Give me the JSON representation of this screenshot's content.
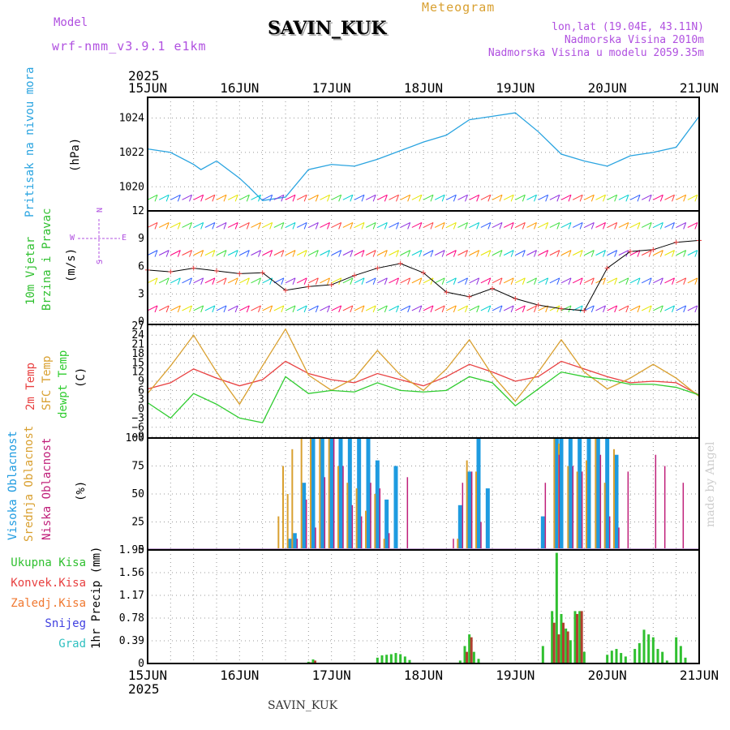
{
  "header": {
    "model_label": "Model",
    "model_name": "wrf-nmm_v3.9.1 e1km",
    "station": "SAVIN_KUK",
    "product": "Meteogram",
    "coords": "lon,lat (19.04E, 43.11N)",
    "elevation": "Nadmorska Visina 2010m",
    "model_elevation": "Nadmorska Visina u modelu 2059.35m",
    "year": "2025",
    "footer_station": "SAVIN_KUK",
    "credit": "made by Angel"
  },
  "colors": {
    "pressure": "#2aa4e0",
    "temp2m": "#e84040",
    "sfctemp": "#d9a030",
    "dewpt": "#30cc30",
    "wind_label": "#30c030",
    "high_cloud": "#1e9be0",
    "mid_cloud": "#d9a030",
    "low_cloud": "#c0207a",
    "precip": "#30c030",
    "convective": "#e84040",
    "freezing": "#f07830",
    "snow": "#4040e0",
    "graupel": "#30c0c0",
    "compass": "#b050e0"
  },
  "chart_data": [
    {
      "type": "line",
      "id": "pressure",
      "label": "Pritisak na nivou mora",
      "ylabel": "(hPa)",
      "x_ticks": [
        "15JUN",
        "16JUN",
        "17JUN",
        "18JUN",
        "19JUN",
        "20JUN",
        "21JUN"
      ],
      "x_range_days": [
        0,
        6
      ],
      "ylim": [
        1018.6,
        1025.2
      ],
      "y_ticks": [
        1020,
        1022,
        1024
      ],
      "series": [
        {
          "x": [
            0,
            0.25,
            0.5,
            0.58,
            0.75,
            1.0,
            1.1,
            1.25,
            1.5,
            1.75,
            2.0,
            2.25,
            2.5,
            2.75,
            3.0,
            3.25,
            3.5,
            3.75,
            4.0,
            4.25,
            4.5,
            4.75,
            5.0,
            5.25,
            5.5,
            5.75,
            6.0
          ],
          "values": [
            1022.2,
            1022.0,
            1021.3,
            1021.0,
            1021.5,
            1020.5,
            1020.0,
            1019.2,
            1019.4,
            1021.0,
            1021.3,
            1021.2,
            1021.6,
            1022.1,
            1022.6,
            1023.0,
            1023.9,
            1024.1,
            1024.3,
            1023.2,
            1021.9,
            1021.5,
            1021.2,
            1021.8,
            1022.0,
            1022.3,
            1024.1
          ]
        }
      ]
    },
    {
      "type": "scatter",
      "id": "wind",
      "label_line1": "10m Vjetar",
      "label_line2": "Brzina i Pravac",
      "ylabel": "(m/s)",
      "compass": {
        "n": "N",
        "s": "S",
        "e": "E",
        "w": "W"
      },
      "ylim": [
        -0.3,
        12
      ],
      "y_ticks": [
        0,
        3,
        6,
        9,
        12
      ],
      "x": [
        0,
        0.25,
        0.5,
        0.75,
        1.0,
        1.25,
        1.5,
        1.75,
        2.0,
        2.25,
        2.5,
        2.75,
        3.0,
        3.25,
        3.5,
        3.75,
        4.0,
        4.25,
        4.5,
        4.75,
        5.0,
        5.25,
        5.5,
        5.75,
        6.0
      ],
      "series": [
        {
          "name": "wind speed",
          "values": [
            5.6,
            5.4,
            5.8,
            5.5,
            5.2,
            5.3,
            3.4,
            3.8,
            4.0,
            5.0,
            5.8,
            6.3,
            5.3,
            3.2,
            2.7,
            3.6,
            2.5,
            1.8,
            1.4,
            1.2,
            5.8,
            7.6,
            7.8,
            8.6,
            8.8
          ]
        }
      ]
    },
    {
      "type": "line",
      "id": "temperature",
      "label_2m": "2m Temp",
      "label_sfc": "SFC Temp",
      "label_dew": "dewpt Temp",
      "ylabel": "(C)",
      "ylim": [
        -9.5,
        27.5
      ],
      "y_ticks": [
        -9,
        -6,
        -3,
        0,
        3,
        6,
        9,
        12,
        15,
        18,
        21,
        24,
        27
      ],
      "x": [
        0,
        0.25,
        0.5,
        0.75,
        1.0,
        1.25,
        1.5,
        1.75,
        2.0,
        2.25,
        2.5,
        2.75,
        3.0,
        3.25,
        3.5,
        3.75,
        4.0,
        4.25,
        4.5,
        4.75,
        5.0,
        5.25,
        5.5,
        5.75,
        6.0
      ],
      "series": [
        {
          "name": "2m Temp",
          "values": [
            6.5,
            8.5,
            13.0,
            10.0,
            7.5,
            9.5,
            15.5,
            11.5,
            9.5,
            8.5,
            11.5,
            9.5,
            7.5,
            10.5,
            14.5,
            12.0,
            9.0,
            10.5,
            15.5,
            13.0,
            10.5,
            8.5,
            9.0,
            8.5,
            4.5
          ]
        },
        {
          "name": "SFC Temp",
          "values": [
            5.0,
            14.0,
            24.0,
            12.0,
            1.5,
            14.0,
            26.0,
            11.0,
            6.0,
            10.0,
            19.0,
            11.0,
            6.0,
            13.0,
            22.5,
            11.0,
            2.5,
            12.0,
            22.5,
            12.0,
            6.5,
            10.0,
            14.5,
            10.0,
            4.0
          ]
        },
        {
          "name": "dewpt Temp",
          "values": [
            2.0,
            -3.0,
            5.0,
            1.5,
            -3.0,
            -4.5,
            10.5,
            5.0,
            6.0,
            5.5,
            8.5,
            6.0,
            5.5,
            6.0,
            10.5,
            8.5,
            1.0,
            6.5,
            12.0,
            10.5,
            9.5,
            8.0,
            8.0,
            7.0,
            4.5
          ]
        }
      ]
    },
    {
      "type": "bar",
      "id": "cloud",
      "label_high": "Visoka Oblacnost",
      "label_mid": "Srednja Oblacnost",
      "label_low": "Niska Oblacnost",
      "ylabel": "(%)",
      "ylim": [
        0,
        100
      ],
      "y_ticks": [
        0,
        25,
        50,
        75,
        100
      ],
      "x": [
        1.45,
        1.5,
        1.55,
        1.6,
        1.7,
        1.8,
        1.9,
        2.0,
        2.1,
        2.2,
        2.3,
        2.4,
        2.5,
        2.6,
        2.7,
        2.8,
        3.3,
        3.4,
        3.5,
        3.6,
        3.7,
        3.8,
        4.3,
        4.45,
        4.5,
        4.6,
        4.7,
        4.8,
        4.9,
        5.0,
        5.1,
        5.2,
        5.5,
        5.6,
        5.8
      ],
      "series": [
        {
          "name": "Visoka Oblacnost",
          "values": [
            0,
            0,
            10,
            15,
            60,
            100,
            100,
            100,
            100,
            100,
            100,
            100,
            80,
            45,
            75,
            0,
            0,
            40,
            70,
            100,
            55,
            0,
            30,
            100,
            100,
            100,
            100,
            100,
            100,
            100,
            85,
            0,
            0,
            0,
            0
          ]
        },
        {
          "name": "Srednja Oblacnost",
          "values": [
            30,
            75,
            50,
            90,
            100,
            100,
            100,
            100,
            75,
            60,
            55,
            35,
            50,
            10,
            0,
            0,
            0,
            10,
            80,
            70,
            0,
            0,
            0,
            100,
            95,
            75,
            70,
            80,
            100,
            60,
            90,
            0,
            0,
            0,
            0
          ]
        },
        {
          "name": "Niska Oblacnost",
          "values": [
            0,
            0,
            0,
            10,
            45,
            20,
            65,
            100,
            75,
            40,
            30,
            60,
            55,
            15,
            0,
            65,
            10,
            60,
            70,
            25,
            0,
            0,
            60,
            85,
            0,
            75,
            70,
            0,
            85,
            30,
            20,
            70,
            85,
            75,
            60
          ]
        }
      ]
    },
    {
      "type": "bar",
      "id": "precip",
      "label_total": "Ukupna Kisa",
      "label_conv": "Konvek.Kisa",
      "label_frz": "Zaledj.Kisa",
      "label_snow": "Snijeg",
      "label_grad": "Grad",
      "ylabel": "1hr Precip (mm)",
      "ylim": [
        0,
        1.95
      ],
      "y_ticks": [
        "0",
        "0.39",
        "0.78",
        "1.17",
        "1.56",
        "1.95"
      ],
      "x": [
        1.75,
        1.8,
        2.5,
        2.55,
        2.6,
        2.65,
        2.7,
        2.75,
        2.8,
        2.85,
        3.4,
        3.45,
        3.5,
        3.55,
        3.6,
        4.3,
        4.4,
        4.45,
        4.5,
        4.55,
        4.6,
        4.65,
        4.7,
        4.75,
        5.0,
        5.05,
        5.1,
        5.15,
        5.2,
        5.3,
        5.35,
        5.4,
        5.45,
        5.5,
        5.55,
        5.6,
        5.65,
        5.75,
        5.8,
        5.85
      ],
      "series": [
        {
          "name": "Ukupna Kisa",
          "values": [
            0.03,
            0.07,
            0.1,
            0.14,
            0.15,
            0.16,
            0.18,
            0.16,
            0.12,
            0.06,
            0.05,
            0.3,
            0.5,
            0.2,
            0.08,
            0.3,
            0.9,
            1.9,
            0.85,
            0.6,
            0.4,
            0.9,
            0.9,
            0.2,
            0.15,
            0.22,
            0.25,
            0.18,
            0.12,
            0.25,
            0.35,
            0.58,
            0.5,
            0.45,
            0.25,
            0.2,
            0.05,
            0.45,
            0.3,
            0.1
          ]
        },
        {
          "name": "Konvek.Kisa",
          "values": [
            0.02,
            0.05,
            0,
            0,
            0,
            0,
            0,
            0,
            0,
            0,
            0,
            0.2,
            0.45,
            0,
            0,
            0,
            0.7,
            0.5,
            0.7,
            0.55,
            0,
            0.85,
            0.9,
            0,
            0,
            0,
            0,
            0,
            0,
            0,
            0,
            0,
            0,
            0,
            0,
            0,
            0,
            0,
            0,
            0
          ]
        }
      ]
    }
  ]
}
